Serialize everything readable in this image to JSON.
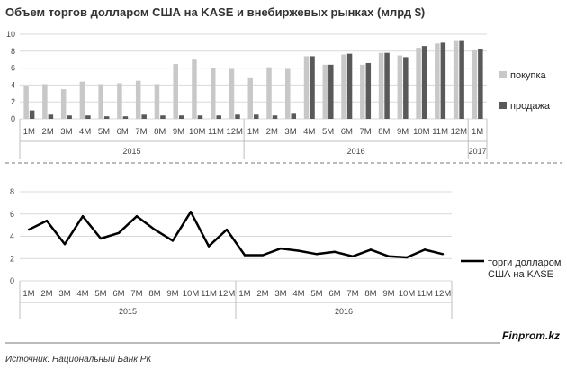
{
  "title": "Объем торгов долларом США на KASE и внебиржевых рынках (млрд $)",
  "source": "Источник: Национальный Банк РК",
  "brand": "Finprom.kz",
  "chart_data": [
    {
      "type": "bar",
      "categories": [
        "1M",
        "2M",
        "3M",
        "4M",
        "5M",
        "6M",
        "7M",
        "8M",
        "9M",
        "10M",
        "11M",
        "12M",
        "1M",
        "2M",
        "3M",
        "4M",
        "5M",
        "6M",
        "7M",
        "8M",
        "9M",
        "10M",
        "11M",
        "12M",
        "1M"
      ],
      "groups": [
        {
          "label": "2015",
          "start": 0,
          "end": 11
        },
        {
          "label": "2016",
          "start": 12,
          "end": 23
        },
        {
          "label": "2017",
          "start": 24,
          "end": 24
        }
      ],
      "series": [
        {
          "name": "покупка",
          "color": "#c8c8c8",
          "values": [
            3.9,
            4.1,
            3.5,
            4.4,
            4.1,
            4.2,
            4.5,
            4.1,
            6.5,
            7.0,
            6.0,
            5.9,
            4.8,
            6.1,
            5.9,
            7.4,
            6.4,
            7.6,
            6.4,
            7.8,
            7.5,
            8.4,
            8.9,
            9.3,
            8.2
          ]
        },
        {
          "name": "продажа",
          "color": "#595959",
          "values": [
            1.0,
            0.5,
            0.4,
            0.4,
            0.3,
            0.3,
            0.5,
            0.4,
            0.4,
            0.4,
            0.4,
            0.5,
            0.5,
            0.4,
            0.6,
            7.4,
            6.4,
            7.7,
            6.6,
            7.8,
            7.3,
            8.6,
            9.0,
            9.3,
            8.3
          ]
        }
      ],
      "ylim": [
        0,
        10
      ],
      "yticks": [
        "0",
        "2",
        "4",
        "6",
        "8",
        "10"
      ],
      "legend": "right",
      "grid": true
    },
    {
      "type": "line",
      "categories": [
        "1M",
        "2M",
        "3M",
        "4M",
        "5M",
        "6M",
        "7M",
        "8M",
        "9M",
        "10M",
        "11M",
        "12M",
        "1M",
        "2M",
        "3M",
        "4M",
        "5M",
        "6M",
        "7M",
        "8M",
        "9M",
        "10M",
        "11M",
        "12M"
      ],
      "groups": [
        {
          "label": "2015",
          "start": 0,
          "end": 11
        },
        {
          "label": "2016",
          "start": 12,
          "end": 23
        }
      ],
      "series": [
        {
          "name": "торги долларом США на KASE",
          "color": "#000000",
          "values": [
            4.6,
            5.4,
            3.3,
            5.8,
            3.8,
            4.3,
            5.8,
            4.6,
            3.6,
            6.2,
            3.1,
            4.6,
            2.3,
            2.3,
            2.9,
            2.7,
            2.4,
            2.6,
            2.2,
            2.8,
            2.2,
            2.1,
            2.8,
            2.4
          ]
        }
      ],
      "ylim": [
        0,
        8
      ],
      "yticks": [
        "0",
        "2",
        "4",
        "6",
        "8"
      ],
      "legend": "right",
      "grid": true
    }
  ]
}
